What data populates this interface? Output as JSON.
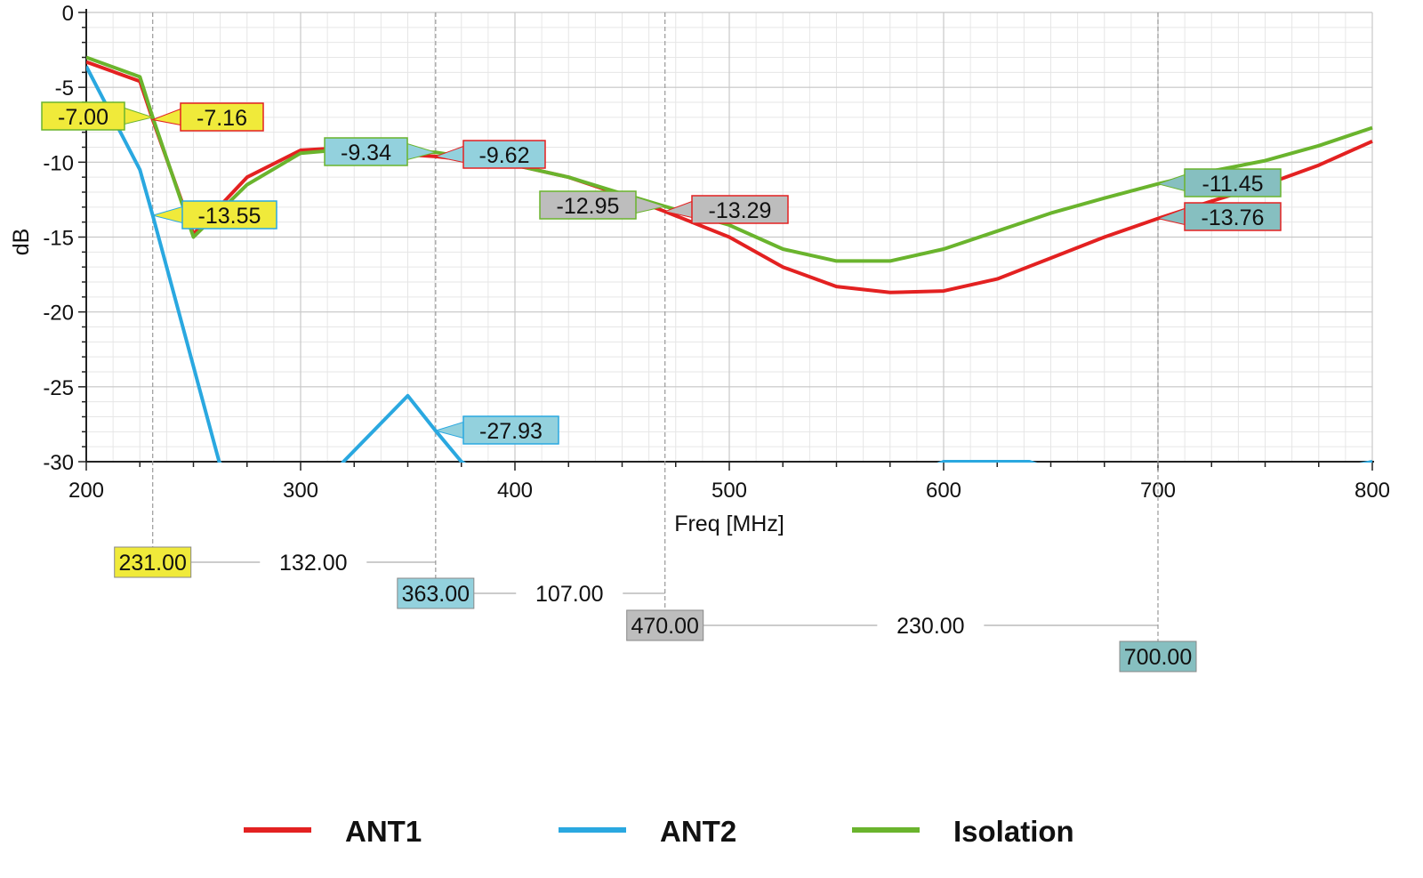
{
  "chart_data": {
    "type": "line",
    "xlabel": "Freq [MHz]",
    "ylabel": "dB",
    "xlim": [
      200,
      800
    ],
    "ylim": [
      -30,
      0
    ],
    "xticks": [
      "200",
      "300",
      "400",
      "500",
      "600",
      "700",
      "800"
    ],
    "yticks": [
      "0",
      "-5",
      "-10",
      "-15",
      "-20",
      "-25",
      "-30"
    ],
    "grid": true,
    "legend_position": "bottom",
    "series": [
      {
        "name": "ANT1",
        "color": "#e32121",
        "x": [
          200,
          225,
          231,
          250,
          275,
          300,
          325,
          350,
          363,
          400,
          425,
          450,
          470,
          500,
          525,
          550,
          575,
          600,
          625,
          650,
          675,
          700,
          725,
          750,
          775,
          800
        ],
        "y": [
          -3.3,
          -4.6,
          -7.16,
          -14.8,
          -11.0,
          -9.2,
          -9.0,
          -9.5,
          -9.62,
          -10.2,
          -11.0,
          -12.2,
          -13.29,
          -15.0,
          -17.0,
          -18.3,
          -18.7,
          -18.6,
          -17.8,
          -16.4,
          -15.0,
          -13.76,
          -12.6,
          -11.5,
          -10.2,
          -8.6
        ]
      },
      {
        "name": "ANT2",
        "color": "#2aa8e0",
        "x": [
          200,
          225,
          231,
          262,
          290,
          320,
          350,
          363,
          375,
          420,
          500,
          600,
          640,
          700,
          800
        ],
        "y": [
          -3.6,
          -10.5,
          -13.55,
          -30.0,
          -36.0,
          -30.0,
          -25.6,
          -27.93,
          -30.0,
          -34.0,
          -36.0,
          -30.0,
          -30.0,
          -33.0,
          -30.0
        ]
      },
      {
        "name": "Isolation",
        "color": "#6ab42d",
        "x": [
          200,
          225,
          231,
          250,
          275,
          300,
          325,
          350,
          363,
          400,
          425,
          450,
          470,
          500,
          525,
          550,
          575,
          600,
          625,
          650,
          675,
          700,
          725,
          750,
          775,
          800
        ],
        "y": [
          -3.0,
          -4.3,
          -7.0,
          -15.0,
          -11.5,
          -9.4,
          -9.1,
          -9.3,
          -9.34,
          -10.2,
          -11.0,
          -12.1,
          -12.95,
          -14.2,
          -15.8,
          -16.6,
          -16.6,
          -15.8,
          -14.6,
          -13.4,
          -12.4,
          -11.45,
          -10.6,
          -9.9,
          -8.9,
          -7.7
        ]
      }
    ],
    "markers": [
      {
        "freq_label": "231.00",
        "freq": 231,
        "fill": "#f0ea3a",
        "readouts": [
          {
            "series": "Isolation",
            "value": "-7.00"
          },
          {
            "series": "ANT1",
            "value": "-7.16"
          },
          {
            "series": "ANT2",
            "value": "-13.55"
          }
        ]
      },
      {
        "freq_label": "363.00",
        "freq": 363,
        "fill": "#93d1dd",
        "readouts": [
          {
            "series": "Isolation",
            "value": "-9.34"
          },
          {
            "series": "ANT1",
            "value": "-9.62"
          },
          {
            "series": "ANT2",
            "value": "-27.93"
          }
        ]
      },
      {
        "freq_label": "470.00",
        "freq": 470,
        "fill": "#bdbdbd",
        "readouts": [
          {
            "series": "Isolation",
            "value": "-12.95"
          },
          {
            "series": "ANT1",
            "value": "-13.29"
          }
        ]
      },
      {
        "freq_label": "700.00",
        "freq": 700,
        "fill": "#86bfc0",
        "readouts": [
          {
            "series": "Isolation",
            "value": "-11.45"
          },
          {
            "series": "ANT1",
            "value": "-13.76"
          }
        ]
      }
    ],
    "deltas": [
      "132.00",
      "107.00",
      "230.00"
    ]
  }
}
